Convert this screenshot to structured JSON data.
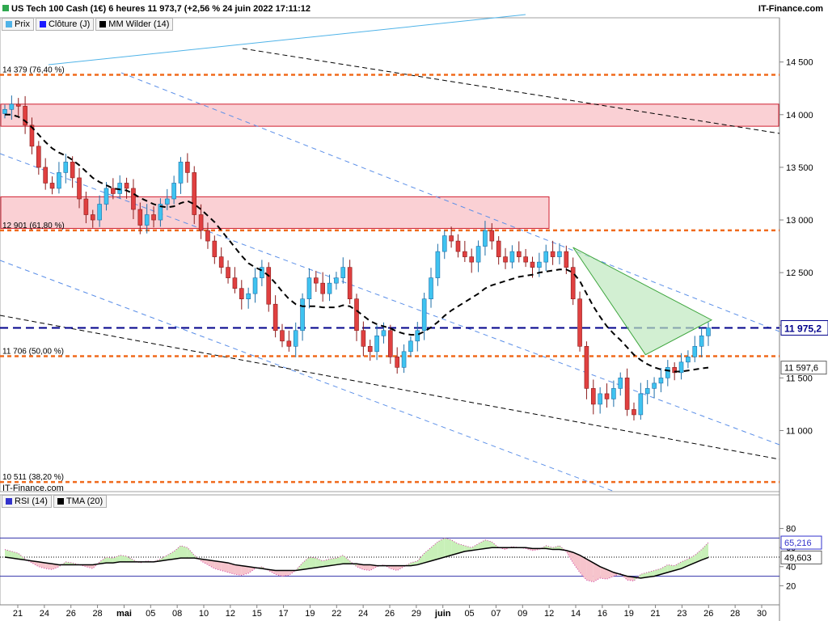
{
  "header": {
    "title": "US Tech 100 Cash (1€) 6 heures 11 973,7 (+2,56 % 24 juin 2022 17:11:12",
    "brand": "IT-Finance.com",
    "watermark": "IT-Finance.com"
  },
  "legend_main": [
    {
      "label": "Prix",
      "color": "#4fb3e8"
    },
    {
      "label": "Clôture (J)",
      "color": "#1a1aff"
    },
    {
      "label": "MM Wilder (14)",
      "color": "#000000"
    }
  ],
  "legend_rsi": [
    {
      "label": "RSI (14)",
      "color": "#3333cc"
    },
    {
      "label": "TMA (20)",
      "color": "#000000"
    }
  ],
  "chart_data": {
    "type": "candlestick",
    "y_ticks": [
      "14 500",
      "14 000",
      "13 500",
      "13 000",
      "12 500",
      "12 000",
      "11 500",
      "11 000"
    ],
    "y_tick_values": [
      14500,
      14000,
      13500,
      13000,
      12500,
      12000,
      11500,
      11000
    ],
    "ylim": [
      10420,
      14920
    ],
    "x_ticks": [
      "21",
      "24",
      "26",
      "28",
      "mai",
      "05",
      "08",
      "10",
      "12",
      "15",
      "17",
      "19",
      "22",
      "24",
      "26",
      "29",
      "juin",
      "05",
      "07",
      "09",
      "12",
      "14",
      "16",
      "19",
      "21",
      "23",
      "26",
      "28",
      "30"
    ],
    "x_tick_months": [
      "mai",
      "juin"
    ],
    "fib_levels": [
      {
        "label": "14 379 (76,40 %)",
        "value": 14379
      },
      {
        "label": "12 901 (61,80 %)",
        "value": 12901
      },
      {
        "label": "11 706 (50,00 %)",
        "value": 11706
      },
      {
        "label": "10 511 (38,20 %)",
        "value": 10511
      }
    ],
    "zones": [
      {
        "from": 13890,
        "to": 14100
      },
      {
        "from": 12920,
        "to": 13220
      }
    ],
    "last_price": {
      "label": "11 975,2",
      "value": 11975.2
    },
    "ma_value": {
      "label": "11 597,6",
      "value": 11597.6
    },
    "closes": [
      14050,
      14100,
      14080,
      13900,
      13700,
      13500,
      13350,
      13300,
      13450,
      13550,
      13400,
      13200,
      13050,
      13000,
      13150,
      13300,
      13250,
      13350,
      13300,
      13100,
      12950,
      13050,
      13000,
      13150,
      13200,
      13350,
      13550,
      13450,
      13050,
      12900,
      12800,
      12650,
      12550,
      12450,
      12350,
      12250,
      12300,
      12450,
      12550,
      12200,
      11950,
      11850,
      11800,
      11950,
      12250,
      12450,
      12400,
      12300,
      12400,
      12450,
      12550,
      12250,
      11950,
      11800,
      11750,
      11900,
      11950,
      11700,
      11600,
      11750,
      11850,
      11950,
      12250,
      12450,
      12700,
      12850,
      12800,
      12700,
      12650,
      12600,
      12750,
      12900,
      12800,
      12650,
      12600,
      12700,
      12650,
      12600,
      12550,
      12600,
      12700,
      12650,
      12700,
      12550,
      12250,
      11800,
      11400,
      11250,
      11350,
      11300,
      11400,
      11500,
      11200,
      11150,
      11350,
      11400,
      11450,
      11500,
      11600,
      11550,
      11650,
      11700,
      11800,
      11900,
      11975
    ],
    "ma": [
      14000,
      14000,
      13980,
      13940,
      13880,
      13810,
      13740,
      13680,
      13640,
      13610,
      13570,
      13520,
      13460,
      13400,
      13360,
      13330,
      13300,
      13290,
      13280,
      13250,
      13210,
      13180,
      13150,
      13130,
      13120,
      13130,
      13160,
      13180,
      13150,
      13100,
      13040,
      12980,
      12900,
      12820,
      12740,
      12660,
      12590,
      12550,
      12520,
      12470,
      12400,
      12320,
      12250,
      12200,
      12180,
      12180,
      12180,
      12170,
      12170,
      12170,
      12190,
      12180,
      12140,
      12090,
      12040,
      12010,
      11990,
      11970,
      11940,
      11920,
      11910,
      11910,
      11940,
      11980,
      12030,
      12090,
      12140,
      12180,
      12220,
      12260,
      12300,
      12350,
      12380,
      12400,
      12420,
      12440,
      12460,
      12470,
      12480,
      12500,
      12510,
      12520,
      12530,
      12530,
      12500,
      12420,
      12300,
      12180,
      12080,
      11990,
      11920,
      11860,
      11790,
      11720,
      11670,
      11630,
      11600,
      11580,
      11570,
      11560,
      11560,
      11570,
      11580,
      11590,
      11597.6
    ],
    "rsi": {
      "y_ticks": [
        "80",
        "60",
        "40",
        "20"
      ],
      "y_tick_values": [
        80,
        60,
        40,
        20
      ],
      "ylim": [
        0,
        100
      ],
      "overbought": 70,
      "oversold": 30,
      "rsi_label": "65,216",
      "rsi_value": 65.216,
      "tma_label": "49,603",
      "tma_value": 49.603,
      "rsi_values": [
        58,
        56,
        54,
        48,
        44,
        40,
        38,
        37,
        40,
        45,
        44,
        42,
        40,
        38,
        45,
        50,
        49,
        52,
        51,
        47,
        44,
        46,
        45,
        48,
        52,
        56,
        62,
        60,
        52,
        46,
        42,
        38,
        36,
        34,
        32,
        31,
        33,
        38,
        40,
        36,
        32,
        30,
        31,
        36,
        44,
        50,
        49,
        46,
        48,
        49,
        52,
        46,
        40,
        37,
        36,
        40,
        42,
        38,
        36,
        40,
        44,
        46,
        54,
        60,
        66,
        70,
        68,
        64,
        62,
        60,
        64,
        68,
        66,
        60,
        58,
        61,
        60,
        59,
        57,
        58,
        62,
        60,
        62,
        56,
        44,
        34,
        26,
        24,
        28,
        27,
        30,
        33,
        26,
        25,
        32,
        34,
        36,
        38,
        42,
        41,
        45,
        48,
        52,
        58,
        65.216
      ],
      "tma_values": [
        50,
        49,
        48,
        47,
        46,
        45,
        44,
        43,
        42,
        42,
        42,
        42,
        42,
        42,
        43,
        44,
        44,
        45,
        45,
        45,
        45,
        45,
        45,
        46,
        47,
        48,
        49,
        49,
        49,
        48,
        47,
        46,
        45,
        44,
        42,
        41,
        40,
        39,
        38,
        37,
        36,
        36,
        36,
        36,
        37,
        38,
        39,
        40,
        41,
        42,
        43,
        43,
        43,
        42,
        42,
        41,
        41,
        41,
        41,
        41,
        41,
        42,
        44,
        46,
        48,
        50,
        52,
        54,
        56,
        57,
        58,
        59,
        60,
        60,
        60,
        60,
        60,
        60,
        59,
        59,
        59,
        58,
        58,
        57,
        55,
        52,
        48,
        44,
        40,
        37,
        34,
        32,
        30,
        29,
        28,
        29,
        30,
        32,
        34,
        36,
        38,
        41,
        44,
        47,
        49.603
      ]
    }
  }
}
